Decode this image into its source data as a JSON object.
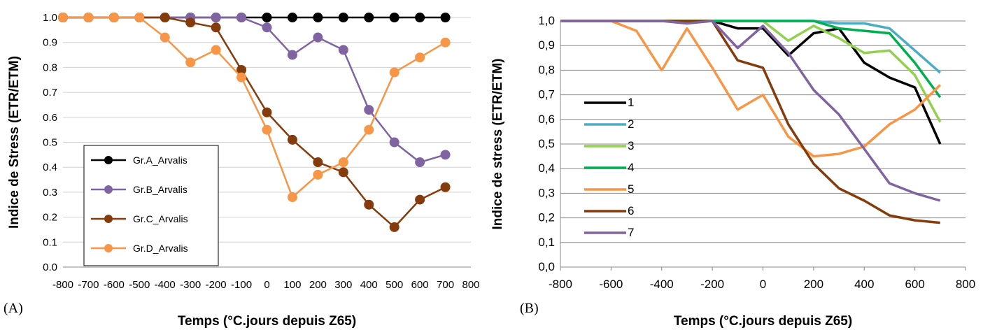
{
  "chart_data": [
    {
      "type": "line",
      "panel_label": "(A)",
      "title": "",
      "xlabel": "Temps (°C.jours depuis Z65)",
      "ylabel": "Indice de Stress (ETR/ETM)",
      "xlim": [
        -800,
        800
      ],
      "ylim": [
        0,
        1
      ],
      "xticks": [
        "-800",
        "-700",
        "-600",
        "-500",
        "-400",
        "-300",
        "-200",
        "-100",
        "0",
        "100",
        "200",
        "300",
        "400",
        "500",
        "600",
        "700",
        "800"
      ],
      "yticks": [
        "0.0",
        "0.1",
        "0.2",
        "0.3",
        "0.4",
        "0.5",
        "0.6",
        "0.7",
        "0.8",
        "0.9",
        "1.0"
      ],
      "grid": "horizontal",
      "markers": true,
      "legend_position": "bottom-left",
      "x": [
        -800,
        -700,
        -600,
        -500,
        -400,
        -300,
        -200,
        -100,
        0,
        100,
        200,
        300,
        400,
        500,
        600,
        700
      ],
      "series": [
        {
          "name": "Gr.A_Arvalis",
          "color": "#000000",
          "values": [
            1.0,
            1.0,
            1.0,
            1.0,
            1.0,
            1.0,
            1.0,
            1.0,
            1.0,
            1.0,
            1.0,
            1.0,
            1.0,
            1.0,
            1.0,
            1.0
          ]
        },
        {
          "name": "Gr.B_Arvalis",
          "color": "#8064a2",
          "values": [
            1.0,
            1.0,
            1.0,
            1.0,
            1.0,
            1.0,
            1.0,
            1.0,
            0.96,
            0.85,
            0.92,
            0.87,
            0.63,
            0.5,
            0.42,
            0.45
          ]
        },
        {
          "name": "Gr.C_Arvalis",
          "color": "#843c0c",
          "values": [
            1.0,
            1.0,
            1.0,
            1.0,
            1.0,
            0.98,
            0.96,
            0.79,
            0.62,
            0.51,
            0.42,
            0.38,
            0.25,
            0.16,
            0.27,
            0.32
          ]
        },
        {
          "name": "Gr.D_Arvalis",
          "color": "#f79646",
          "values": [
            1.0,
            1.0,
            1.0,
            1.0,
            0.92,
            0.82,
            0.87,
            0.76,
            0.55,
            0.28,
            0.37,
            0.42,
            0.55,
            0.78,
            0.84,
            0.9
          ]
        }
      ]
    },
    {
      "type": "line",
      "panel_label": "(B)",
      "title": "",
      "xlabel": "Temps (°C.jours depuis Z65)",
      "ylabel": "Indice de stress (ETR/ETM)",
      "xlim": [
        -800,
        800
      ],
      "ylim": [
        0,
        1
      ],
      "xticks": [
        "-800",
        "-600",
        "-400",
        "-200",
        "0",
        "200",
        "400",
        "600",
        "800"
      ],
      "yticks": [
        "0,0",
        "0,1",
        "0,2",
        "0,3",
        "0,4",
        "0,5",
        "0,6",
        "0,7",
        "0,8",
        "0,9",
        "1,0"
      ],
      "grid": "horizontal",
      "markers": false,
      "legend_position": "center-left",
      "x": [
        -800,
        -700,
        -600,
        -500,
        -400,
        -300,
        -200,
        -100,
        0,
        100,
        200,
        300,
        400,
        500,
        600,
        700
      ],
      "series": [
        {
          "name": "1",
          "color": "#000000",
          "values": [
            1.0,
            1.0,
            1.0,
            1.0,
            1.0,
            1.0,
            1.0,
            0.97,
            0.97,
            0.86,
            0.95,
            0.97,
            0.83,
            0.77,
            0.73,
            0.5
          ]
        },
        {
          "name": "2",
          "color": "#4bacc6",
          "values": [
            1.0,
            1.0,
            1.0,
            1.0,
            1.0,
            1.0,
            1.0,
            1.0,
            1.0,
            1.0,
            1.0,
            0.99,
            0.99,
            0.97,
            0.88,
            0.79
          ]
        },
        {
          "name": "3",
          "color": "#92d050",
          "values": [
            1.0,
            1.0,
            1.0,
            1.0,
            1.0,
            1.0,
            1.0,
            1.0,
            1.0,
            0.92,
            0.98,
            0.93,
            0.87,
            0.88,
            0.78,
            0.59
          ]
        },
        {
          "name": "4",
          "color": "#00b050",
          "values": [
            1.0,
            1.0,
            1.0,
            1.0,
            1.0,
            1.0,
            1.0,
            1.0,
            1.0,
            1.0,
            1.0,
            0.97,
            0.96,
            0.95,
            0.83,
            0.69
          ]
        },
        {
          "name": "5",
          "color": "#f79646",
          "values": [
            1.0,
            1.0,
            1.0,
            0.96,
            0.8,
            0.97,
            0.81,
            0.64,
            0.7,
            0.53,
            0.45,
            0.46,
            0.49,
            0.58,
            0.64,
            0.74
          ]
        },
        {
          "name": "6",
          "color": "#843c0c",
          "values": [
            1.0,
            1.0,
            1.0,
            1.0,
            1.0,
            1.0,
            1.0,
            0.84,
            0.81,
            0.58,
            0.42,
            0.32,
            0.27,
            0.21,
            0.19,
            0.18
          ]
        },
        {
          "name": "7",
          "color": "#8064a2",
          "values": [
            1.0,
            1.0,
            1.0,
            1.0,
            1.0,
            0.99,
            1.0,
            0.89,
            0.98,
            0.87,
            0.72,
            0.62,
            0.48,
            0.34,
            0.3,
            0.27
          ]
        }
      ]
    }
  ]
}
